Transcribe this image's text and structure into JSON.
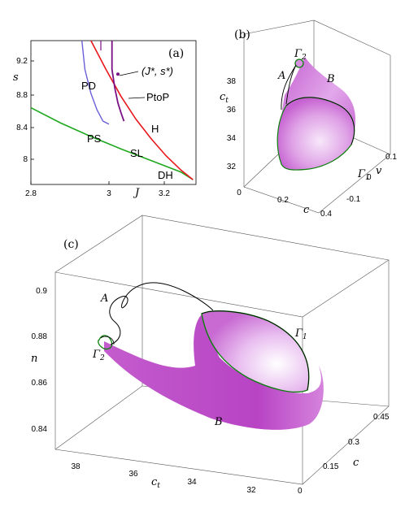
{
  "panel_a": {
    "panel_label": "(a)",
    "xlabel": "J",
    "ylabel": "s",
    "x_ticks": [
      "2.8",
      "3",
      "3.2"
    ],
    "y_ticks": [
      "9.2",
      "8.8",
      "8.4",
      "8"
    ],
    "point_label": "(J*, s*)",
    "curve_labels": {
      "PD": "PD",
      "PtoP": "PtoP",
      "H": "H",
      "PS": "PS",
      "SL": "SL",
      "DH": "DH"
    },
    "colors": {
      "H": "#e8181d",
      "SL": "#1fa81f",
      "PD": "#6a5fd8",
      "PtoP": "#7a0f86"
    }
  },
  "panel_b": {
    "panel_label": "(b)",
    "z_label": "c_t",
    "x_label": "c",
    "y_label": "v",
    "z_ticks": [
      "38",
      "36",
      "34",
      "32"
    ],
    "x_ticks": [
      "0",
      "0.2",
      "0.4"
    ],
    "y_ticks": [
      "0.1",
      "0",
      "-0.1"
    ],
    "labels": {
      "A": "A",
      "B": "B",
      "gamma1": "Γ1",
      "gamma2": "Γ2"
    }
  },
  "panel_c": {
    "panel_label": "(c)",
    "z_label": "n",
    "x_label": "c_t",
    "y_label": "c",
    "z_ticks": [
      "0.9",
      "0.88",
      "0.86",
      "0.84"
    ],
    "x_ticks": [
      "38",
      "36",
      "34",
      "32"
    ],
    "y_ticks": [
      "0.45",
      "0.3",
      "0.15",
      "0"
    ],
    "labels": {
      "A": "A",
      "B": "B",
      "gamma1": "Γ1",
      "gamma2": "Γ2"
    }
  },
  "chart_data": {
    "type": "line",
    "title": "",
    "xlabel": "J",
    "ylabel": "s",
    "xlim": [
      2.8,
      3.35
    ],
    "ylim": [
      7.8,
      9.3
    ],
    "grid": false,
    "series": [
      {
        "name": "H",
        "x": [
          3.0,
          3.05,
          3.1,
          3.15,
          3.2,
          3.25,
          3.3,
          3.34
        ],
        "y": [
          9.3,
          9.0,
          8.72,
          8.48,
          8.28,
          8.1,
          7.95,
          7.85
        ]
      },
      {
        "name": "SL",
        "x": [
          2.8,
          2.9,
          3.0,
          3.1,
          3.2,
          3.3,
          3.34
        ],
        "y": [
          8.6,
          8.44,
          8.3,
          8.17,
          8.05,
          7.93,
          7.85
        ]
      },
      {
        "name": "PD",
        "x": [
          2.97,
          2.98,
          3.0,
          3.02,
          3.04,
          3.06
        ],
        "y": [
          9.3,
          9.0,
          8.75,
          8.58,
          8.46,
          8.43
        ]
      },
      {
        "name": "PtoP",
        "x": [
          3.07,
          3.07,
          3.08,
          3.09,
          3.1,
          3.11
        ],
        "y": [
          9.3,
          9.0,
          8.8,
          8.65,
          8.55,
          8.46
        ]
      }
    ],
    "points": [
      {
        "label": "(J*, s*)",
        "x": 3.09,
        "y": 8.95
      }
    ]
  }
}
